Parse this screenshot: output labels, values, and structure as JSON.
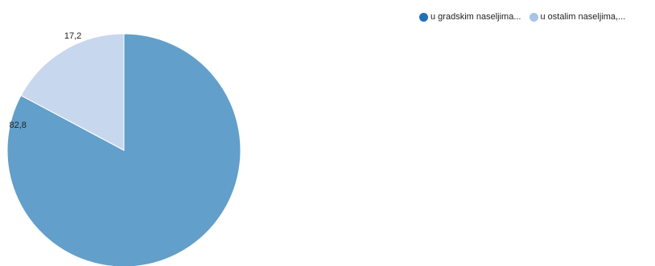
{
  "chart_data": {
    "type": "pie",
    "categories": [
      "u gradskim naseljima...",
      "u ostalim naseljima,..."
    ],
    "values": [
      82.8,
      17.2
    ],
    "value_labels": [
      "82,8",
      "17,2"
    ],
    "slice_colors": [
      "#629FCA",
      "#C7D7EE"
    ],
    "legend_colors": [
      "#2171B5",
      "#A9C3E8"
    ],
    "legend_position": "top-right"
  }
}
